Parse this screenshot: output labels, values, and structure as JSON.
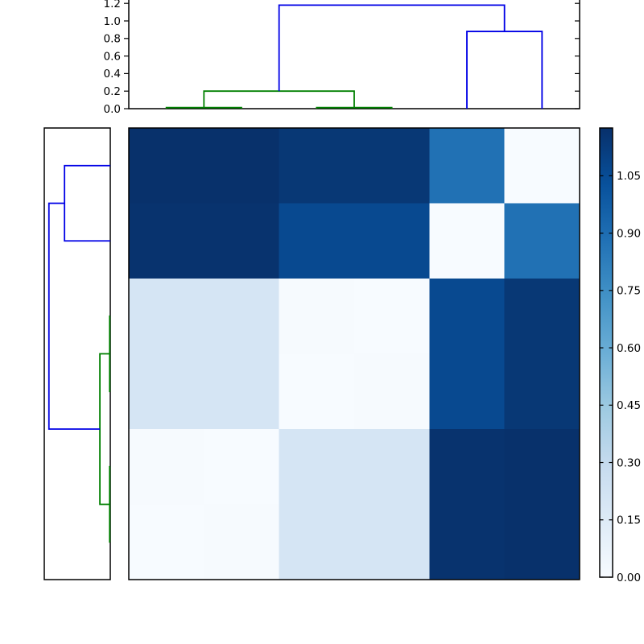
{
  "figure": {
    "background": "#ffffff",
    "axis_color": "#000000"
  },
  "chart_data": {
    "type": "heatmap",
    "subtype": "hierarchical-clustermap",
    "title": "",
    "colormap": "Blues",
    "vmin": 0.0,
    "vmax": 1.175,
    "legend_position": "colorbar-right",
    "grid": false,
    "heatmap": {
      "n_rows": 6,
      "n_cols": 6,
      "description": "Symmetric distance matrix; rows are displayed in reverse leaf order relative to columns, so the zero diagonal runs from top-right to bottom-left",
      "values": [
        [
          1.16,
          1.16,
          1.13,
          1.13,
          0.88,
          0
        ],
        [
          1.15,
          1.15,
          1.05,
          1.05,
          0,
          0.88
        ],
        [
          0.2,
          0.2,
          0.01,
          0,
          1.05,
          1.13
        ],
        [
          0.2,
          0.2,
          0,
          0.01,
          1.05,
          1.13
        ],
        [
          0.01,
          0,
          0.2,
          0.2,
          1.15,
          1.16
        ],
        [
          0,
          0.01,
          0.2,
          0.2,
          1.15,
          1.16
        ]
      ],
      "value_colors": {
        "0": "#f7fbff",
        "0.01": "#f6fafe",
        "0.2": "#d5e5f4",
        "0.88": "#2171b4",
        "1.05": "#084990",
        "1.13": "#083875",
        "1.15": "#08336e",
        "1.16": "#08316b"
      }
    },
    "top_dendrogram": {
      "orientation": "top",
      "axis_tick_labels": [
        "0.0",
        "0.2",
        "0.4",
        "0.6",
        "0.8",
        "1.0",
        "1.2"
      ],
      "axis_tick_values": [
        0,
        0.2,
        0.4,
        0.6,
        0.8,
        1.0,
        1.2
      ],
      "axis_range_visible": [
        0,
        1.24
      ],
      "links": [
        {
          "a": 0.5,
          "b": 1.5,
          "ha": 0,
          "hb": 0,
          "h": 0.012,
          "color": "green"
        },
        {
          "a": 2.5,
          "b": 3.5,
          "ha": 0,
          "hb": 0,
          "h": 0.012,
          "color": "green"
        },
        {
          "a": 1.0,
          "b": 3.0,
          "ha": 0.012,
          "hb": 0.012,
          "h": 0.2,
          "color": "green"
        },
        {
          "a": 4.5,
          "b": 5.5,
          "ha": 0,
          "hb": 0,
          "h": 0.88,
          "color": "blue"
        },
        {
          "a": 2.0,
          "b": 5.0,
          "ha": 0.2,
          "hb": 0.88,
          "h": 1.18,
          "color": "blue"
        }
      ]
    },
    "left_dendrogram": {
      "orientation": "left",
      "axis_tick_labels": [],
      "axis_range_visible": [
        0,
        1.27
      ],
      "links": [
        {
          "a": 0.5,
          "b": 1.5,
          "ha": 0,
          "hb": 0,
          "h": 0.88,
          "color": "blue"
        },
        {
          "a": 2.5,
          "b": 3.5,
          "ha": 0,
          "hb": 0,
          "h": 0.012,
          "color": "green"
        },
        {
          "a": 4.5,
          "b": 5.5,
          "ha": 0,
          "hb": 0,
          "h": 0.012,
          "color": "green"
        },
        {
          "a": 3.0,
          "b": 5.0,
          "ha": 0.012,
          "hb": 0.012,
          "h": 0.2,
          "color": "green"
        },
        {
          "a": 1.0,
          "b": 4.0,
          "ha": 0.88,
          "hb": 0.2,
          "h": 1.18,
          "color": "blue"
        }
      ]
    },
    "colorbar": {
      "tick_labels": [
        "0.00",
        "0.15",
        "0.30",
        "0.45",
        "0.60",
        "0.75",
        "0.90",
        "1.05"
      ],
      "tick_values": [
        0,
        0.15,
        0.3,
        0.45,
        0.6,
        0.75,
        0.9,
        1.05
      ],
      "gradient_stops": [
        "#f7fbff",
        "#deebf7",
        "#c6dbef",
        "#9ecae1",
        "#6baed6",
        "#4292c6",
        "#2171b5",
        "#08519c",
        "#08306b"
      ]
    },
    "line_colors": {
      "green": "#008000",
      "blue": "#0000e6"
    }
  }
}
